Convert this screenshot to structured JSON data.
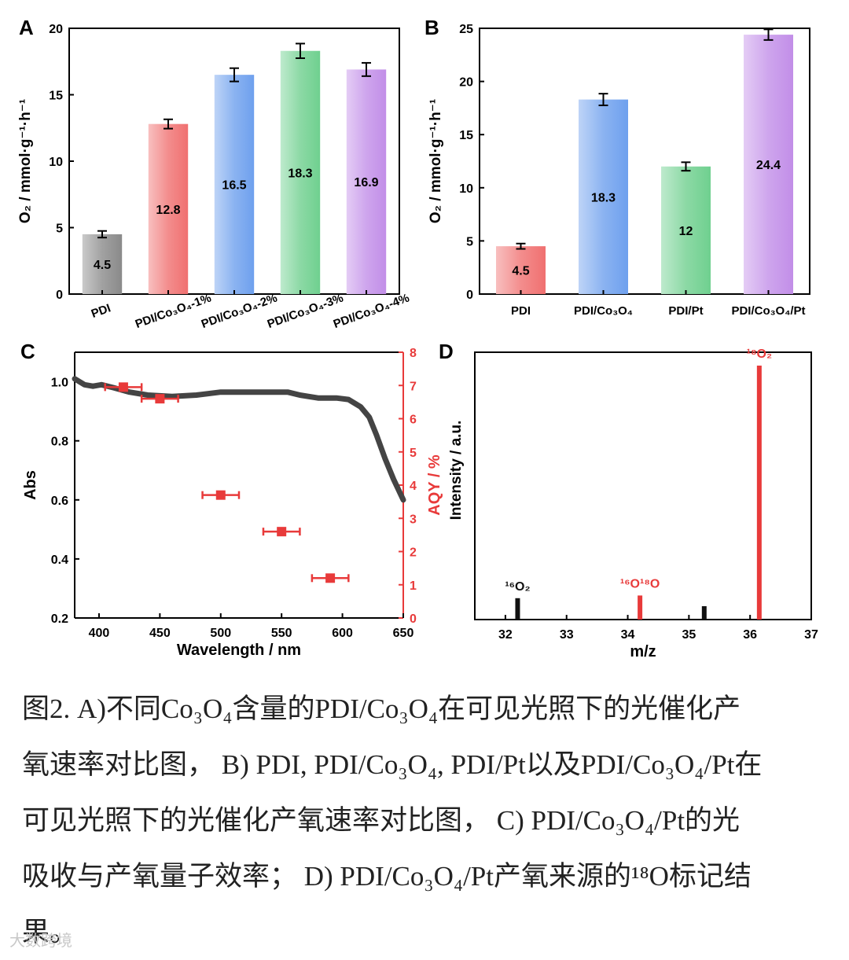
{
  "figure": {
    "panels": [
      "A",
      "B",
      "C",
      "D"
    ],
    "caption_lines": [
      "图2. A)不同Co₃O₄含量的PDI/Co₃O₄在可见光照下的光催化产",
      "氧速率对比图， B) PDI, PDI/Co₃O₄, PDI/Pt以及PDI/Co₃O₄/Pt在",
      "可见光照下的光催化产氧速率对比图， C) PDI/Co₃O₄/Pt的光",
      "吸收与产氧量子效率； D) PDI/Co₃O₄/Pt产氧来源的¹⁸O标记结",
      "果。"
    ],
    "watermark": "大数跨境"
  },
  "chart_data": [
    {
      "panel": "A",
      "type": "bar",
      "ylabel": "O₂ / mmol·g⁻¹·h⁻¹",
      "ylim": [
        0,
        20
      ],
      "yticks": [
        0,
        5,
        10,
        15,
        20
      ],
      "categories": [
        "PDI",
        "PDI/Co₃O₄-1%",
        "PDI/Co₃O₄-2%",
        "PDI/Co₃O₄-3%",
        "PDI/Co₃O₄-4%"
      ],
      "values": [
        4.5,
        12.8,
        16.5,
        18.3,
        16.9
      ],
      "errors": [
        0.25,
        0.35,
        0.5,
        0.55,
        0.5
      ],
      "labels": [
        "4.5",
        "12.8",
        "16.5",
        "18.3",
        "16.9"
      ],
      "colors": [
        "#8a8a8a",
        "#f07070",
        "#6ea0ee",
        "#6fd08f",
        "#c28ee8"
      ]
    },
    {
      "panel": "B",
      "type": "bar",
      "ylabel": "O₂ / mmol·g⁻¹·h⁻¹",
      "ylim": [
        0,
        25
      ],
      "yticks": [
        0,
        5,
        10,
        15,
        20,
        25
      ],
      "categories": [
        "PDI",
        "PDI/Co₃O₄",
        "PDI/Pt",
        "PDI/Co₃O₄/Pt"
      ],
      "values": [
        4.5,
        18.3,
        12,
        24.4
      ],
      "errors": [
        0.25,
        0.55,
        0.4,
        0.5
      ],
      "labels": [
        "4.5",
        "18.3",
        "12",
        "24.4"
      ],
      "colors": [
        "#f07070",
        "#6ea0ee",
        "#6fd08f",
        "#c28ee8"
      ]
    },
    {
      "panel": "C",
      "type": "line",
      "xlabel": "Wavelength / nm",
      "ylabel": "Abs",
      "y2label": "AQY / %",
      "xlim": [
        380,
        650
      ],
      "xticks": [
        400,
        450,
        500,
        550,
        600,
        650
      ],
      "ylim": [
        0.2,
        1.1
      ],
      "yticks": [
        0.2,
        0.4,
        0.6,
        0.8,
        1.0
      ],
      "y2lim": [
        0,
        8
      ],
      "y2ticks": [
        0,
        1,
        2,
        3,
        4,
        5,
        6,
        7,
        8
      ],
      "absorbance": {
        "x": [
          380,
          388,
          395,
          402,
          412,
          425,
          440,
          460,
          480,
          500,
          520,
          540,
          555,
          565,
          580,
          595,
          605,
          615,
          622,
          628,
          635,
          642,
          650
        ],
        "y": [
          1.01,
          0.99,
          0.985,
          0.99,
          0.98,
          0.965,
          0.955,
          0.95,
          0.955,
          0.965,
          0.965,
          0.965,
          0.965,
          0.955,
          0.945,
          0.945,
          0.94,
          0.915,
          0.88,
          0.82,
          0.74,
          0.67,
          0.6
        ]
      },
      "aqy": {
        "x": [
          420,
          450,
          500,
          550,
          590
        ],
        "y": [
          6.95,
          6.6,
          3.7,
          2.6,
          1.2
        ],
        "xerr": [
          15,
          15,
          15,
          15,
          15
        ],
        "color": "#e83a3a"
      }
    },
    {
      "panel": "D",
      "type": "bar",
      "xlabel": "m/z",
      "ylabel": "Intensity / a.u.",
      "xlim": [
        31.5,
        37
      ],
      "xticks": [
        32,
        33,
        34,
        35,
        36,
        37
      ],
      "peaks": [
        {
          "x": 32.2,
          "y": 0.08,
          "color": "#111111",
          "label": "¹⁶O₂"
        },
        {
          "x": 34.2,
          "y": 0.09,
          "color": "#e83a3a",
          "label": "¹⁶O¹⁸O"
        },
        {
          "x": 35.25,
          "y": 0.05,
          "color": "#111111",
          "label": ""
        },
        {
          "x": 36.15,
          "y": 0.95,
          "color": "#e83a3a",
          "label": "¹⁸O₂"
        }
      ]
    }
  ]
}
